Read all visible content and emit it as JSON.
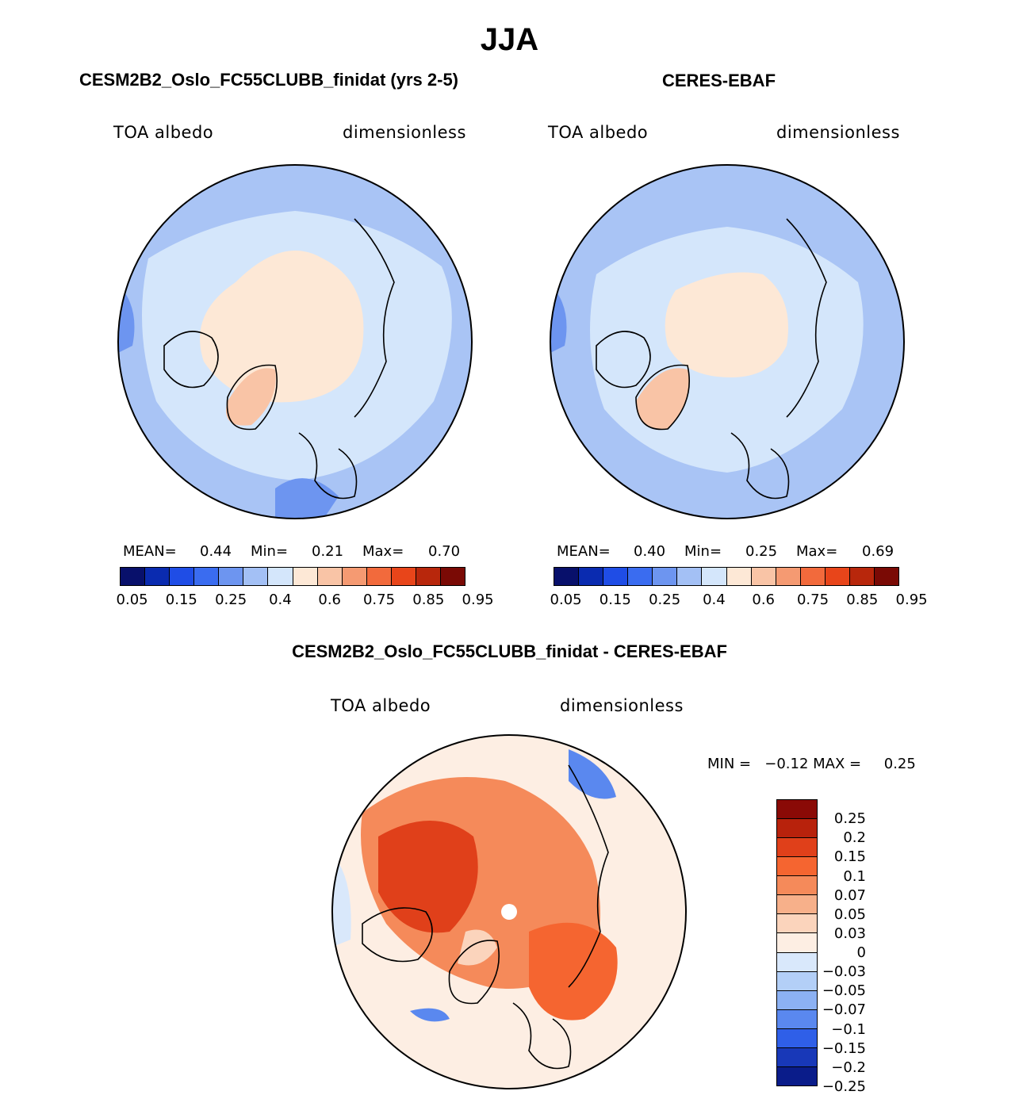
{
  "title": "JJA",
  "panels": [
    {
      "title": "CESM2B2_Oslo_FC55CLUBB_finidat (yrs 2-5)",
      "variable": "TOA albedo",
      "units": "dimensionless",
      "stats": {
        "mean_label": "MEAN=",
        "mean": "0.44",
        "min_label": "Min=",
        "min": "0.21",
        "max_label": "Max=",
        "max": "0.70"
      }
    },
    {
      "title": "CERES-EBAF",
      "variable": "TOA albedo",
      "units": "dimensionless",
      "stats": {
        "mean_label": "MEAN=",
        "mean": "0.40",
        "min_label": "Min=",
        "min": "0.25",
        "max_label": "Max=",
        "max": "0.69"
      }
    }
  ],
  "diff": {
    "title": "CESM2B2_Oslo_FC55CLUBB_finidat - CERES-EBAF",
    "variable": "TOA albedo",
    "units": "dimensionless",
    "minmax": "MIN =   −0.12 MAX =     0.25"
  },
  "colorbar_abs": {
    "ticks": [
      "0.05",
      "0.15",
      "0.25",
      "0.4",
      "0.6",
      "0.75",
      "0.85",
      "0.95"
    ],
    "colors": [
      "#08106b",
      "#0a2bb0",
      "#1f4de6",
      "#3a6cf0",
      "#6d95f0",
      "#a3c0f5",
      "#d4e6fb",
      "#fde8d6",
      "#f9c4a6",
      "#f59a72",
      "#f26a3c",
      "#e8451a",
      "#b8270c",
      "#7a0a05"
    ]
  },
  "colorbar_diff": {
    "ticks": [
      "0.25",
      "0.2",
      "0.15",
      "0.1",
      "0.07",
      "0.05",
      "0.03",
      "0",
      "−0.03",
      "−0.05",
      "−0.07",
      "−0.1",
      "−0.15",
      "−0.2",
      "−0.25"
    ],
    "colors": [
      "#8a0a06",
      "#b8220c",
      "#e0401a",
      "#f56530",
      "#f58a5a",
      "#f7b08a",
      "#fbd4bc",
      "#fdeee3",
      "#d9e8fb",
      "#b3cff7",
      "#8cb1f3",
      "#5a88ef",
      "#2f5fe8",
      "#1838b8",
      "#0a1c8a"
    ]
  },
  "chart_data": [
    {
      "type": "heatmap",
      "title": "CESM2B2_Oslo_FC55CLUBB_finidat (yrs 2-5)",
      "projection": "north polar stereographic",
      "variable": "TOA albedo",
      "units": "dimensionless",
      "mean": 0.44,
      "min": 0.21,
      "max": 0.7,
      "levels": [
        0.05,
        0.1,
        0.15,
        0.2,
        0.25,
        0.3,
        0.4,
        0.5,
        0.6,
        0.7,
        0.75,
        0.8,
        0.85,
        0.9,
        0.95
      ]
    },
    {
      "type": "heatmap",
      "title": "CERES-EBAF",
      "projection": "north polar stereographic",
      "variable": "TOA albedo",
      "units": "dimensionless",
      "mean": 0.4,
      "min": 0.25,
      "max": 0.69,
      "levels": [
        0.05,
        0.1,
        0.15,
        0.2,
        0.25,
        0.3,
        0.4,
        0.5,
        0.6,
        0.7,
        0.75,
        0.8,
        0.85,
        0.9,
        0.95
      ]
    },
    {
      "type": "heatmap",
      "title": "CESM2B2_Oslo_FC55CLUBB_finidat - CERES-EBAF",
      "projection": "north polar stereographic",
      "variable": "TOA albedo",
      "units": "dimensionless",
      "min": -0.12,
      "max": 0.25,
      "levels": [
        -0.25,
        -0.2,
        -0.15,
        -0.1,
        -0.07,
        -0.05,
        -0.03,
        0,
        0.03,
        0.05,
        0.07,
        0.1,
        0.15,
        0.2,
        0.25
      ]
    }
  ]
}
